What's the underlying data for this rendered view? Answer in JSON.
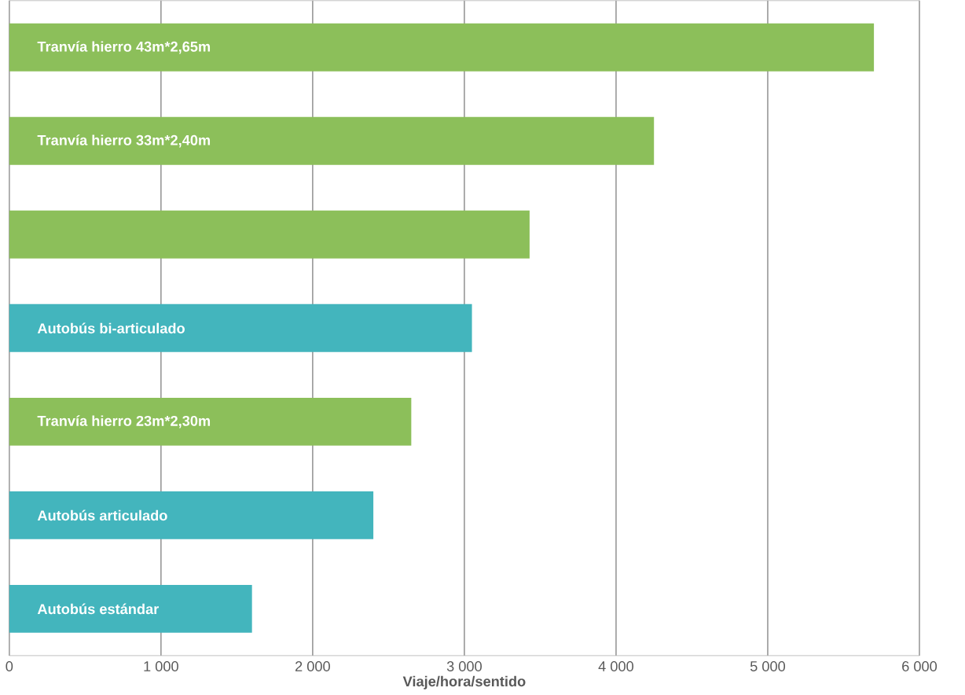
{
  "chart_data": {
    "type": "bar",
    "orientation": "horizontal",
    "xlabel": "Viaje/hora/sentido",
    "categories": [
      "Tranvía hierro 43m*2,65m",
      "Tranvía hierro 33m*2,40m",
      null,
      "Autobús bi-articulado",
      "Tranvía hierro 23m*2,30m",
      "Autobús articulado",
      "Autobús estándar"
    ],
    "values": [
      5700,
      4250,
      3430,
      3050,
      2650,
      2400,
      1600
    ],
    "colors": [
      "#8cbf5a",
      "#8cbf5a",
      "#8cbf5a",
      "#43b5bd",
      "#8cbf5a",
      "#43b5bd",
      "#43b5bd"
    ],
    "xlim": [
      0,
      6000
    ],
    "xticks": [
      0,
      {
        "value": 1000,
        "label": "1 000"
      },
      {
        "value": 2000,
        "label": "2 000"
      },
      {
        "value": 3000,
        "label": "3 000"
      },
      {
        "value": 4000,
        "label": "4 000"
      },
      {
        "value": 5000,
        "label": "5 000"
      },
      {
        "value": 6000,
        "label": "6 000"
      }
    ],
    "grid": "x"
  }
}
